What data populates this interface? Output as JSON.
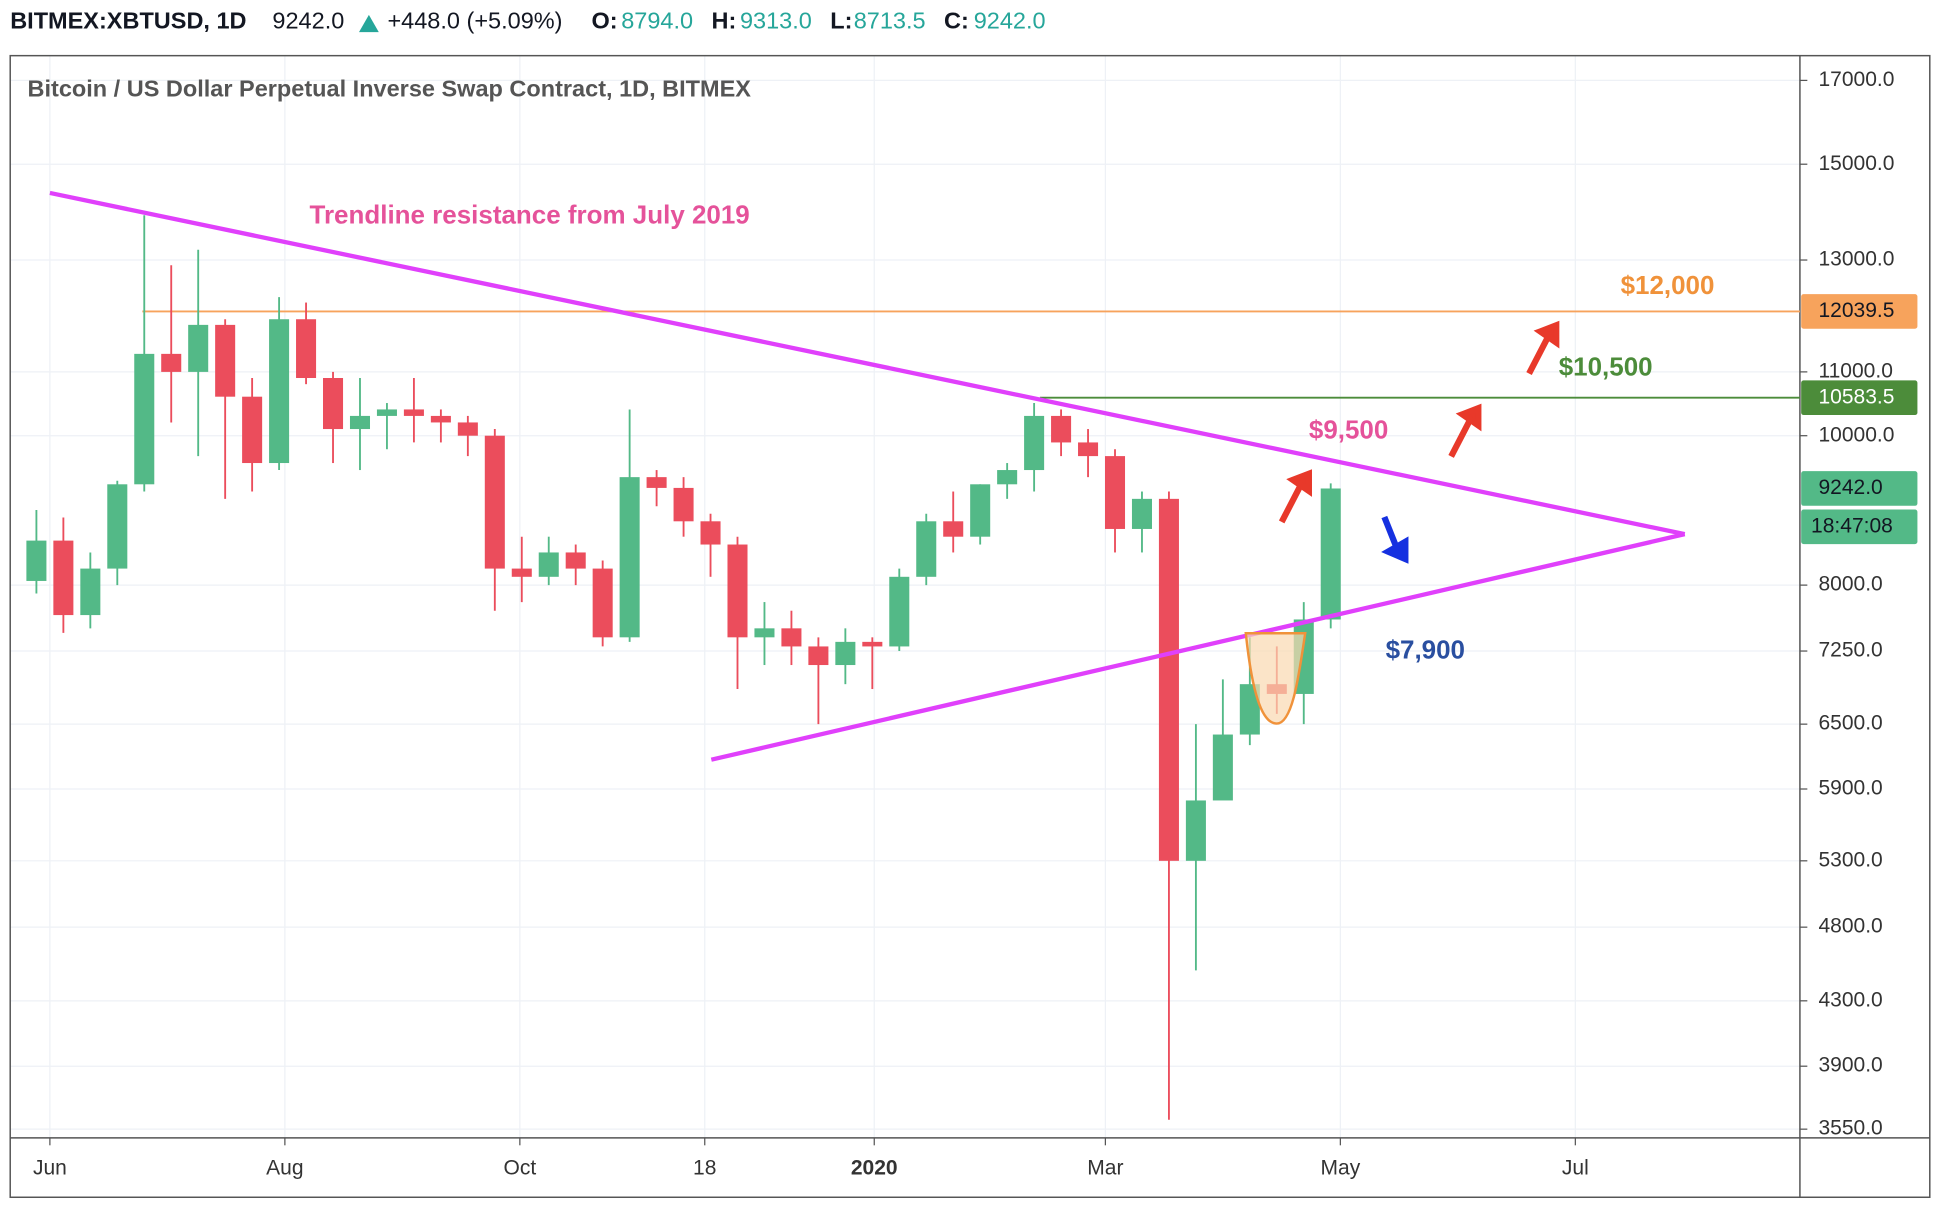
{
  "header": {
    "symbol": "BITMEX:XBTUSD, 1D",
    "last": "9242.0",
    "change": "+448.0 (+5.09%)",
    "open_label": "O:",
    "open": "8794.0",
    "high_label": "H:",
    "high": "9313.0",
    "low_label": "L:",
    "low": "8713.5",
    "close_label": "C:",
    "close": "9242.0"
  },
  "chart_data": {
    "type": "candlestick",
    "title": "Bitcoin / US Dollar Perpetual Inverse Swap Contract, 1D, BITMEX",
    "x": [
      -7,
      0,
      7,
      14,
      21,
      28,
      35,
      42,
      49,
      56,
      63,
      70,
      77,
      84,
      91,
      98,
      105,
      112,
      119,
      126,
      133,
      140,
      147,
      154,
      161,
      168,
      175,
      182,
      189,
      196,
      203,
      210,
      217,
      224,
      231,
      238,
      245,
      252,
      259,
      266,
      273,
      280,
      287,
      294,
      301,
      308,
      315,
      322,
      329
    ],
    "open": [
      8050,
      8550,
      7650,
      8200,
      9300,
      11300,
      11000,
      11800,
      10600,
      9600,
      11900,
      10900,
      10100,
      10300,
      10400,
      10300,
      10200,
      10000,
      8200,
      8100,
      8400,
      8200,
      7400,
      9400,
      9250,
      8800,
      8500,
      7400,
      7500,
      7300,
      7100,
      7350,
      7300,
      8100,
      8800,
      8600,
      9300,
      9500,
      10300,
      9900,
      9700,
      8700,
      9100,
      5300,
      5800,
      6400,
      6900,
      6800,
      7600
    ],
    "high": [
      8950,
      8850,
      8400,
      9350,
      13900,
      12900,
      13200,
      11900,
      10900,
      12300,
      12200,
      11000,
      10900,
      10500,
      10900,
      10400,
      10300,
      10100,
      8600,
      8600,
      8500,
      8300,
      10400,
      9500,
      9400,
      8900,
      8600,
      7800,
      7700,
      7400,
      7500,
      7400,
      8200,
      8900,
      9200,
      9300,
      9600,
      10500,
      10400,
      10100,
      9800,
      9200,
      9200,
      6500,
      6950,
      7400,
      7300,
      7800,
      9313
    ],
    "low": [
      7900,
      7450,
      7500,
      8000,
      9200,
      10200,
      9700,
      9100,
      9200,
      9500,
      10800,
      9600,
      9500,
      9800,
      9900,
      9900,
      9700,
      7700,
      7800,
      8000,
      8000,
      7300,
      7350,
      9000,
      8600,
      8100,
      6850,
      7100,
      7100,
      6500,
      6900,
      6850,
      7250,
      8000,
      8400,
      8500,
      9100,
      9200,
      9700,
      9400,
      8400,
      8400,
      3600,
      4500,
      5850,
      6300,
      6600,
      6500,
      7500
    ],
    "close": [
      8550,
      7650,
      8200,
      9300,
      11300,
      11000,
      11800,
      10600,
      9600,
      11900,
      10900,
      10100,
      10300,
      10400,
      10300,
      10200,
      10000,
      8200,
      8100,
      8400,
      8200,
      7400,
      9400,
      9250,
      8800,
      8500,
      7400,
      7500,
      7300,
      7100,
      7350,
      7300,
      8100,
      8800,
      8600,
      9300,
      9500,
      10300,
      9900,
      9700,
      8700,
      9100,
      5300,
      5800,
      6400,
      6900,
      6800,
      7600,
      9242
    ],
    "up_color": "#53b987",
    "down_color": "#eb4d5c",
    "xlim": [
      -10.3,
      454.3
    ],
    "xticks": [
      {
        "value": 0,
        "label": "Jun"
      },
      {
        "value": 61,
        "label": "Aug"
      },
      {
        "value": 122,
        "label": "Oct"
      },
      {
        "value": 170,
        "label": "18"
      },
      {
        "value": 214,
        "label": "2020"
      },
      {
        "value": 274,
        "label": "Mar"
      },
      {
        "value": 335,
        "label": "May"
      },
      {
        "value": 396,
        "label": "Jul"
      }
    ],
    "ylim": [
      3504,
      17640
    ],
    "log_scale": true,
    "grid": true,
    "yticks": [
      {
        "value": 3550,
        "label": "3550.0"
      },
      {
        "value": 3900,
        "label": "3900.0"
      },
      {
        "value": 4300,
        "label": "4300.0"
      },
      {
        "value": 4800,
        "label": "4800.0"
      },
      {
        "value": 5300,
        "label": "5300.0"
      },
      {
        "value": 5900,
        "label": "5900.0"
      },
      {
        "value": 6500,
        "label": "6500.0"
      },
      {
        "value": 7250,
        "label": "7250.0"
      },
      {
        "value": 8000,
        "label": "8000.0"
      },
      {
        "value": 10000,
        "label": "10000.0"
      },
      {
        "value": 11000,
        "label": "11000.0"
      },
      {
        "value": 13000,
        "label": "13000.0"
      },
      {
        "value": 15000,
        "label": "15000.0"
      },
      {
        "value": 17000,
        "label": "17000.0"
      }
    ],
    "trendlines": [
      {
        "x": [
          0,
          424.4
        ],
        "y": [
          14370,
          8633
        ],
        "color": "#e040fb"
      },
      {
        "x": [
          171.7,
          424.4
        ],
        "y": [
          6164,
          8633
        ],
        "color": "#e040fb"
      }
    ],
    "levels": [
      {
        "value": 12039.5,
        "from": 24,
        "color": "#f7a35c"
      },
      {
        "value": 10583.5,
        "from": 257,
        "color": "#4c8c3a"
      }
    ],
    "price_tags": [
      {
        "value": 12039.5,
        "label": "12039.5",
        "color": "#f7a35c",
        "text_color": "#131722"
      },
      {
        "value": 10583.5,
        "label": "10583.5",
        "color": "#4c8c3a",
        "text_color": "#ffffff"
      },
      {
        "value": 9242,
        "label": "9242.0",
        "color": "#53b987",
        "text_color": "#131722"
      }
    ],
    "countdown": "18:47:08",
    "annotations": [
      {
        "text": "Trendline resistance from July 2019",
        "color": "#e5529a"
      },
      {
        "text": "$12,000",
        "color": "#f0923a"
      },
      {
        "text": "$10,500",
        "color": "#4c8c3a"
      },
      {
        "text": "$9,500",
        "color": "#e5529a"
      },
      {
        "text": "$7,900",
        "color": "#2a4fa0"
      }
    ]
  }
}
